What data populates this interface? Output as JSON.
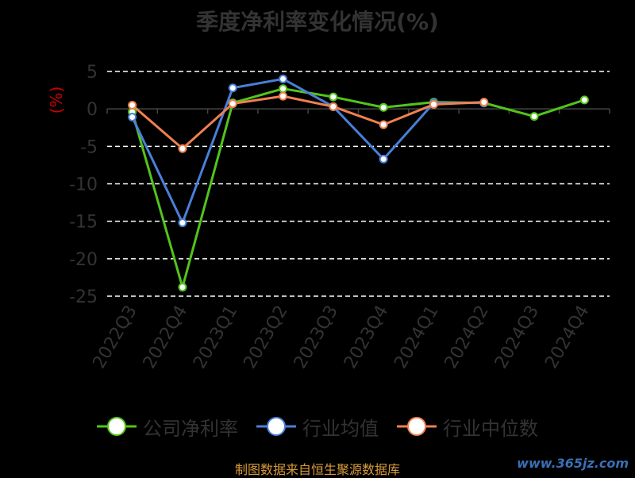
{
  "title": "季度净利率变化情况(%)",
  "source": "制图数据来自恒生聚源数据库",
  "watermark": "www.365jz.com",
  "chart_data": {
    "type": "line",
    "ylabel": "(%)",
    "categories": [
      "2022Q3",
      "2022Q4",
      "2023Q1",
      "2023Q2",
      "2023Q3",
      "2023Q4",
      "2024Q1",
      "2024Q2",
      "2024Q3",
      "2024Q4"
    ],
    "ylim": [
      -25,
      5
    ],
    "yticks": [
      5,
      0,
      -5,
      -10,
      -15,
      -20,
      -25
    ],
    "grid": true,
    "legend_position": "bottom",
    "series": [
      {
        "name": "公司净利率",
        "color": "#52c41a",
        "values": [
          -0.4,
          -23.8,
          0.8,
          2.7,
          1.6,
          0.2,
          0.9,
          0.8,
          -1.0,
          1.2
        ]
      },
      {
        "name": "行业均值",
        "color": "#4a7fd8",
        "values": [
          -1.1,
          -15.2,
          2.8,
          4.0,
          0.3,
          -6.7,
          0.8,
          0.8,
          null,
          null
        ]
      },
      {
        "name": "行业中位数",
        "color": "#f08050",
        "values": [
          0.5,
          -5.3,
          0.7,
          1.7,
          0.3,
          -2.1,
          0.6,
          0.9,
          null,
          null
        ]
      }
    ]
  }
}
